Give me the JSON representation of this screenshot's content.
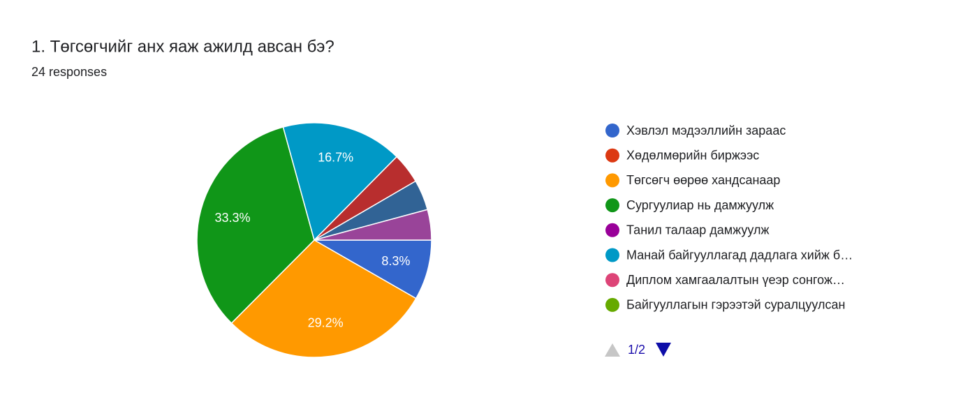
{
  "chart_data": {
    "type": "pie",
    "title": "1. Төгсөгчийг анх яаж ажилд авсан бэ?",
    "subtitle": "24 responses",
    "values": [
      8.3,
      29.2,
      33.3,
      16.7,
      4.2,
      4.2,
      4.2
    ],
    "value_labels": [
      "8.3%",
      "29.2%",
      "33.3%",
      "16.7%",
      null,
      null,
      null
    ],
    "colors": [
      "#3366cc",
      "#ff9900",
      "#109618",
      "#0099c6",
      "#b82e2e",
      "#316395",
      "#994499"
    ],
    "legend": [
      {
        "name": "Хэвлэл мэдээллийн зараас",
        "color": "#3366cc"
      },
      {
        "name": "Хөдөлмөрийн биржээс",
        "color": "#dc3912"
      },
      {
        "name": "Төгсөгч өөрөө хандсанаар",
        "color": "#ff9900"
      },
      {
        "name": "Сургуулиар нь дамжуулж",
        "color": "#109618"
      },
      {
        "name": "Танил талаар дамжуулж",
        "color": "#990099"
      },
      {
        "name": "Манай байгууллагад дадлага хийж б…",
        "color": "#0099c6"
      },
      {
        "name": "Диплом хамгаалалтын үеэр сонгож…",
        "color": "#dd4477"
      },
      {
        "name": "Байгууллагын гэрээтэй суралцуулсан",
        "color": "#66aa00"
      }
    ],
    "legend_page": "1/2"
  }
}
